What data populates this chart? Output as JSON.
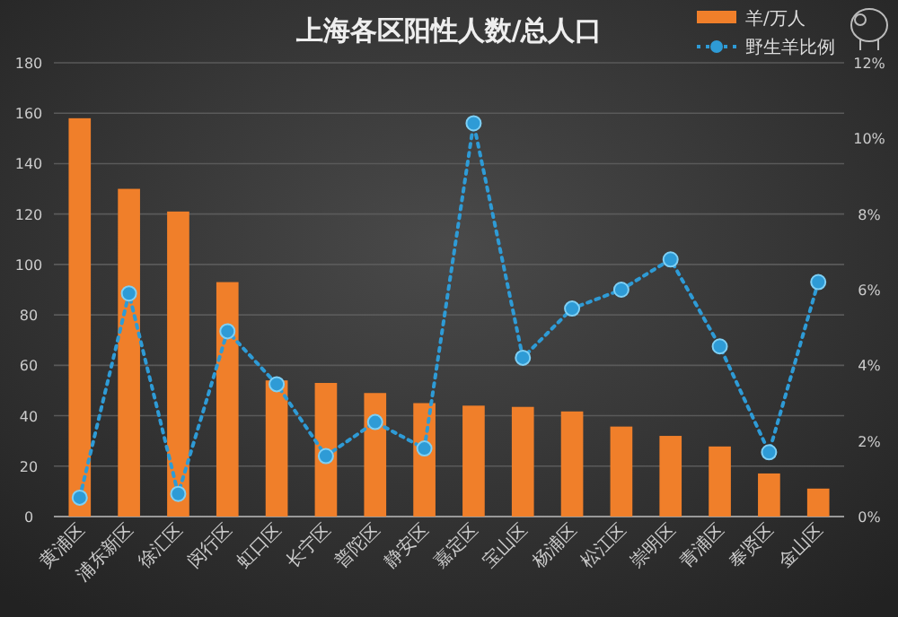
{
  "chart_data": {
    "type": "bar",
    "title": "上海各区阳性人数/总人口",
    "categories": [
      "黄浦区",
      "浦东新区",
      "徐汇区",
      "闵行区",
      "虹口区",
      "长宁区",
      "普陀区",
      "静安区",
      "嘉定区",
      "宝山区",
      "杨浦区",
      "松江区",
      "崇明区",
      "青浦区",
      "奉贤区",
      "金山区"
    ],
    "series": [
      {
        "name": "羊/万人",
        "color": "#f07f2a",
        "values": [
          158,
          130,
          121,
          93,
          54,
          53,
          49,
          45,
          44,
          43.5,
          41.7,
          35.7,
          32,
          27.8,
          17.1,
          11.1
        ]
      },
      {
        "name": "野生羊比例",
        "type": "line",
        "axis": "y2",
        "color": "#2e9bd6",
        "marker": "circle",
        "line_style": "dotted",
        "values": [
          0.5,
          5.9,
          0.6,
          4.9,
          3.5,
          1.6,
          2.5,
          1.8,
          10.4,
          4.2,
          5.5,
          6,
          6.8,
          4.5,
          1.7,
          6.2
        ]
      }
    ],
    "ylim": [
      0,
      180
    ],
    "yticks": [
      0,
      20,
      40,
      60,
      80,
      100,
      120,
      140,
      160,
      180
    ],
    "y2lim": [
      0,
      12
    ],
    "y2ticks": [
      {
        "value": 0,
        "label": "0%"
      },
      {
        "value": 2,
        "label": "2%"
      },
      {
        "value": 4,
        "label": "4%"
      },
      {
        "value": 6,
        "label": "6%"
      },
      {
        "value": 8,
        "label": "8%"
      },
      {
        "value": 10,
        "label": "10%"
      },
      {
        "value": 12,
        "label": "12%"
      }
    ],
    "grid": "y",
    "legend": "top right"
  }
}
